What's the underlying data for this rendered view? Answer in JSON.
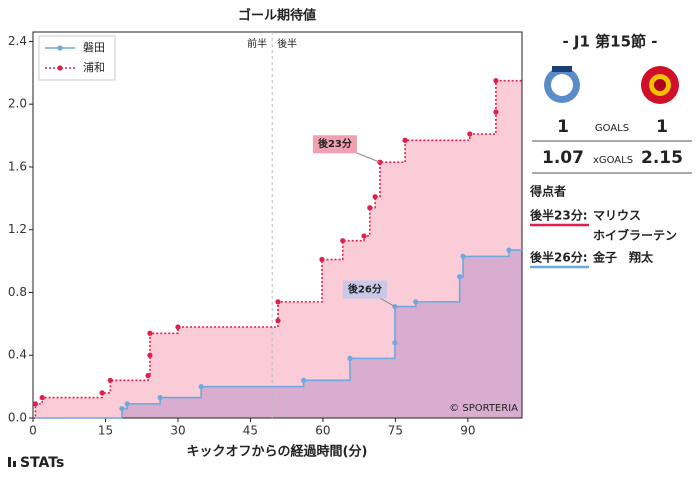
{
  "chart_data": {
    "type": "step",
    "title": "ゴール期待値",
    "x_label": "キックオフからの経過時間(分)",
    "xlim": [
      0,
      101.2
    ],
    "ylim": [
      0,
      2.46
    ],
    "xticks": [
      0,
      15,
      30,
      45,
      60,
      75,
      90
    ],
    "yticks": [
      {
        "value": 0,
        "label": "0.0"
      },
      0.4,
      0.8,
      1.2,
      1.6,
      {
        "value": 2,
        "label": "2.0"
      },
      2.4
    ],
    "legend": "upper left",
    "grid": true,
    "half_labels": [
      "前半",
      "後半"
    ],
    "halftime": 49.5,
    "watermark": "© SPORTERIA",
    "series": [
      {
        "name": "磐田",
        "color": "#6fa8dc",
        "style": "solid",
        "fill": "rgba(110,120,220,0.35)",
        "x": [
          18.4,
          19.5,
          26.3,
          34.8,
          56,
          65.6,
          74.9,
          74.9,
          79.2,
          88.3,
          89,
          98.5
        ],
        "values": [
          0.06,
          0.09,
          0.13,
          0.2,
          0.24,
          0.38,
          0.48,
          0.71,
          0.74,
          0.9,
          1.03,
          1.07
        ]
      },
      {
        "name": "浦和",
        "color": "#e0204a",
        "style": "dotted",
        "fill": "rgba(240,110,140,0.35)",
        "x": [
          0.5,
          1.9,
          14.3,
          16,
          23.8,
          24.2,
          24.2,
          30,
          50.7,
          50.7,
          59.8,
          64.1,
          68.5,
          69.7,
          70.8,
          71.8,
          77,
          90.4,
          95.8,
          95.8
        ],
        "values": [
          0.09,
          0.13,
          0.16,
          0.24,
          0.27,
          0.4,
          0.54,
          0.58,
          0.62,
          0.74,
          1.01,
          1.13,
          1.16,
          1.34,
          1.41,
          1.63,
          1.77,
          1.81,
          1.95,
          2.15
        ]
      }
    ],
    "annotations": [
      {
        "text": "後23分",
        "series": 1,
        "index": 15,
        "dx": -45,
        "dy": -18,
        "bg": "#f0a0b0"
      },
      {
        "text": "後26分",
        "series": 0,
        "index": 7,
        "dx": -30,
        "dy": -17,
        "bg": "#c8c8e8"
      }
    ]
  },
  "footer": "STATs",
  "panel": {
    "round": "- J1 第15節 -",
    "goals_label": "GOALS",
    "xgoals_label": "xGOALS",
    "home_goals": "1",
    "away_goals": "1",
    "home_xg": "1.07",
    "away_xg": "2.15",
    "scorers_title": "得点者",
    "scorers": [
      {
        "time": "後半23分:",
        "names": [
          "マリウス",
          "ホイブラーテン"
        ],
        "color": "#e0204a"
      },
      {
        "time": "後半26分:",
        "names": [
          "金子　翔太"
        ],
        "color": "#6fa8dc"
      }
    ]
  }
}
